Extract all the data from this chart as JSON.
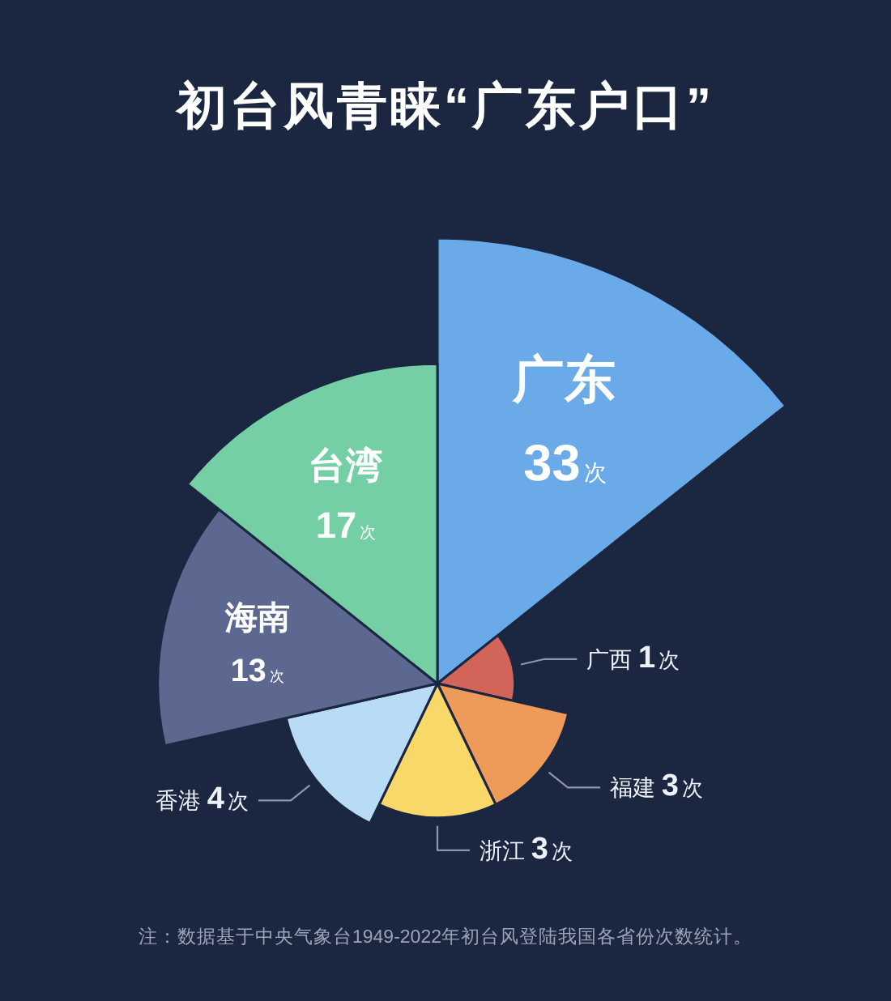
{
  "chart_data": {
    "type": "other",
    "title": "初台风青睐“广东户口”",
    "categories": [
      "广东",
      "广西",
      "福建",
      "浙江",
      "香港",
      "海南",
      "台湾"
    ],
    "values": [
      33,
      1,
      3,
      3,
      4,
      13,
      17
    ],
    "colors": [
      "#6aaae8",
      "#d2645a",
      "#ee9a58",
      "#f7d868",
      "#b8dcf5",
      "#5d6890",
      "#74d0a4"
    ],
    "value_labels": [
      "33次",
      "1次",
      "3次",
      "3次",
      "4次",
      "13次",
      "17次"
    ],
    "annotations": [
      "注：数据基于中央气象台1949-2022年初台风登陆我国各省份次数统计。"
    ]
  }
}
